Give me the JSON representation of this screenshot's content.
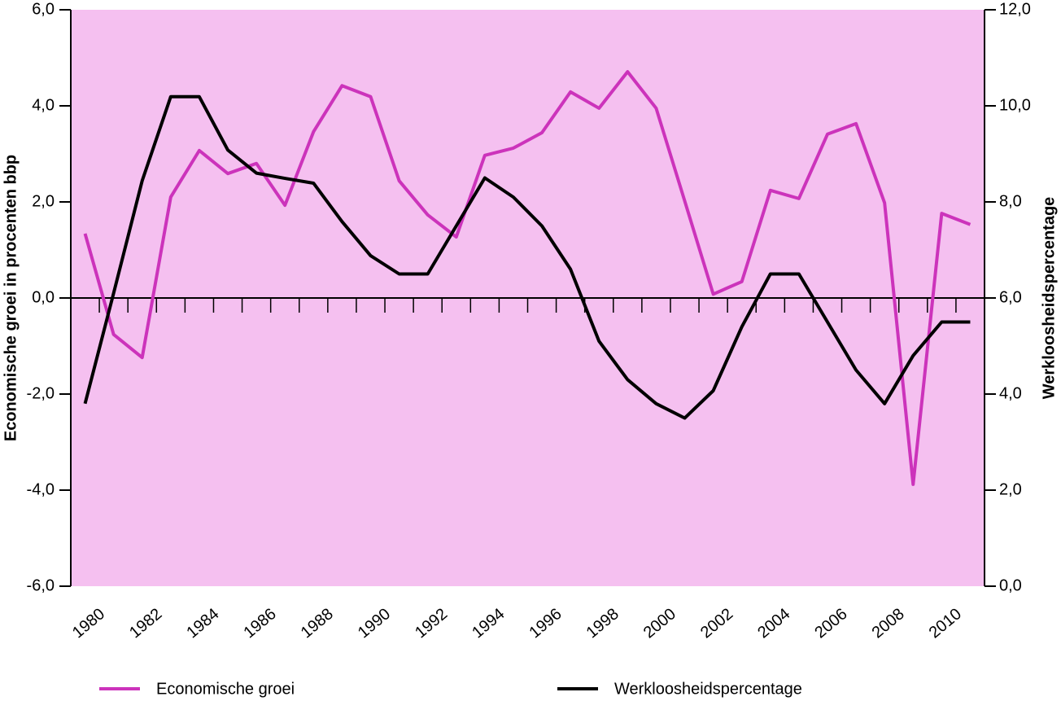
{
  "chart_data": {
    "type": "line",
    "y_label": "Economische groei in procenten bbp",
    "y2_label": "Werkloosheidspercentage",
    "x": [
      1980,
      1981,
      1982,
      1983,
      1984,
      1985,
      1986,
      1987,
      1988,
      1989,
      1990,
      1991,
      1992,
      1993,
      1994,
      1995,
      1996,
      1997,
      1998,
      1999,
      2000,
      2001,
      2002,
      2003,
      2004,
      2005,
      2006,
      2007,
      2008,
      2009,
      2010,
      2011
    ],
    "xlim": [
      1979.5,
      2011.5
    ],
    "xticks": [
      1980,
      1982,
      1984,
      1986,
      1988,
      1990,
      1992,
      1994,
      1996,
      1998,
      2000,
      2002,
      2004,
      2006,
      2008,
      2010
    ],
    "ylim": [
      -6,
      6
    ],
    "yticks": [
      {
        "value": -6,
        "label": "-6,0"
      },
      {
        "value": -4,
        "label": "-4,0"
      },
      {
        "value": -2,
        "label": "-2,0"
      },
      {
        "value": 0,
        "label": "0,0"
      },
      {
        "value": 2,
        "label": "2,0"
      },
      {
        "value": 4,
        "label": "4,0"
      },
      {
        "value": 6,
        "label": "6,0"
      }
    ],
    "y2lim": [
      0,
      12
    ],
    "y2ticks": [
      {
        "value": 0,
        "label": "0,0"
      },
      {
        "value": 2,
        "label": "2,0"
      },
      {
        "value": 4,
        "label": "4,0"
      },
      {
        "value": 6,
        "label": "6,0"
      },
      {
        "value": 8,
        "label": "8,0"
      },
      {
        "value": 10,
        "label": "10,0"
      },
      {
        "value": 12,
        "label": "12,0"
      }
    ],
    "background": "#f5c0f0",
    "series": [
      {
        "name": "Economische groei",
        "color": "#cc33bb",
        "values": [
          1.34,
          -0.76,
          -1.24,
          2.1,
          3.07,
          2.59,
          2.8,
          1.93,
          3.46,
          4.42,
          4.19,
          2.44,
          1.73,
          1.27,
          2.97,
          3.12,
          3.44,
          4.29,
          3.95,
          4.71,
          3.95,
          2.02,
          0.08,
          0.34,
          2.24,
          2.07,
          3.41,
          3.63,
          1.98,
          -3.88,
          1.76,
          1.53
        ]
      },
      {
        "name": "Werkloosheidspercentage",
        "color": "#000000",
        "axis": "y2",
        "values": [
          3.8,
          6.1,
          8.44,
          10.19,
          10.19,
          9.08,
          8.6,
          8.49,
          8.39,
          7.59,
          6.88,
          6.5,
          6.5,
          7.5,
          8.5,
          8.1,
          7.5,
          6.6,
          5.1,
          4.3,
          3.8,
          3.5,
          4.07,
          5.4,
          6.5,
          6.5,
          5.5,
          4.5,
          3.8,
          4.8,
          5.5,
          5.5
        ]
      }
    ]
  }
}
